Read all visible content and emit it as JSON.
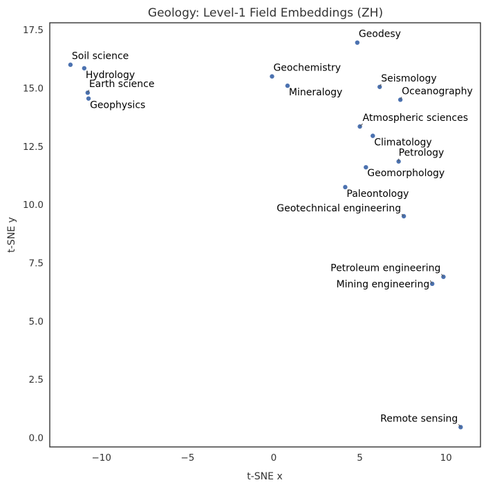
{
  "chart_data": {
    "type": "scatter",
    "title": "Geology: Level-1 Field Embeddings (ZH)",
    "xlabel": "t-SNE x",
    "ylabel": "t-SNE y",
    "xlim": [
      -13.0,
      12.0
    ],
    "ylim": [
      -0.4,
      17.8
    ],
    "xticks": [
      -10,
      -5,
      0,
      5,
      10
    ],
    "xtick_labels": [
      "−10",
      "−5",
      "0",
      "5",
      "10"
    ],
    "yticks": [
      0.0,
      2.5,
      5.0,
      7.5,
      10.0,
      12.5,
      15.0,
      17.5
    ],
    "ytick_labels": [
      "0.0",
      "2.5",
      "5.0",
      "7.5",
      "10.0",
      "12.5",
      "15.0",
      "17.5"
    ],
    "grid": false,
    "color": "#4c72b0",
    "points": [
      {
        "label": "Geodesy",
        "x": 4.85,
        "y": 16.95
      },
      {
        "label": "Soil science",
        "x": -11.8,
        "y": 16.0
      },
      {
        "label": "Hydrology",
        "x": -11.0,
        "y": 15.85
      },
      {
        "label": "Geochemistry",
        "x": -0.1,
        "y": 15.5
      },
      {
        "label": "Mineralogy",
        "x": 0.8,
        "y": 15.1
      },
      {
        "label": "Seismology",
        "x": 6.15,
        "y": 15.05
      },
      {
        "label": "Earth science",
        "x": -10.8,
        "y": 14.8
      },
      {
        "label": "Oceanography",
        "x": 7.35,
        "y": 14.5
      },
      {
        "label": "Geophysics",
        "x": -10.75,
        "y": 14.55
      },
      {
        "label": "Atmospheric sciences",
        "x": 5.0,
        "y": 13.35
      },
      {
        "label": "Climatology",
        "x": 5.75,
        "y": 12.95
      },
      {
        "label": "Petrology",
        "x": 7.25,
        "y": 11.85
      },
      {
        "label": "Geomorphology",
        "x": 5.35,
        "y": 11.6
      },
      {
        "label": "Paleontology",
        "x": 4.15,
        "y": 10.75
      },
      {
        "label": "Geotechnical engineering",
        "x": 7.55,
        "y": 9.5
      },
      {
        "label": "Petroleum engineering",
        "x": 9.85,
        "y": 6.9
      },
      {
        "label": "Mining engineering",
        "x": 9.2,
        "y": 6.6
      },
      {
        "label": "Remote sensing",
        "x": 10.85,
        "y": 0.45
      }
    ]
  }
}
